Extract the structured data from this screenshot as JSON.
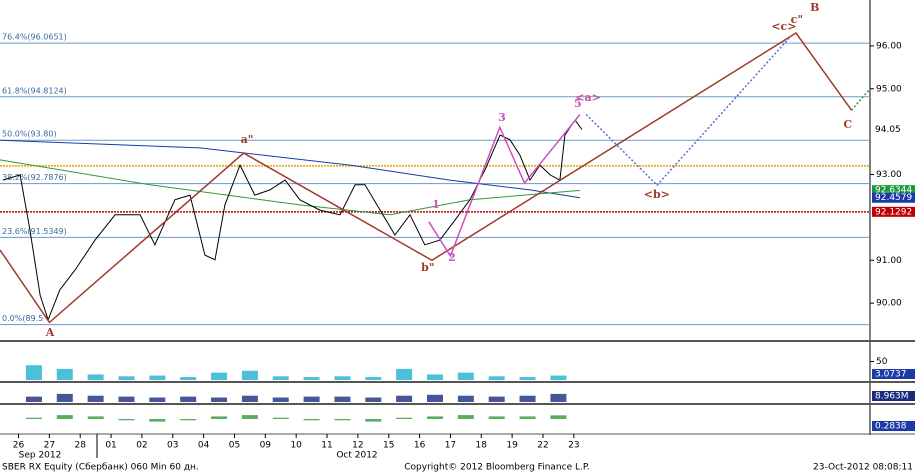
{
  "chart_data": {
    "type": "line",
    "title": "SBER RX Equity (Сбербанк) 060 Min 60 дн.",
    "copyright": "Copyright© 2012 Bloomberg Finance L.P.",
    "timestamp": "23-Oct-2012 08:08:11",
    "months": [
      "Sep 2012",
      "Oct 2012"
    ],
    "xlim": [
      -0.6,
      27.6
    ],
    "xticks": [
      {
        "value": 0,
        "label": "26"
      },
      {
        "value": 1,
        "label": "27"
      },
      {
        "value": 2,
        "label": "28"
      },
      {
        "value": 3,
        "label": "01"
      },
      {
        "value": 4,
        "label": "02"
      },
      {
        "value": 5,
        "label": "03"
      },
      {
        "value": 6,
        "label": "04"
      },
      {
        "value": 7,
        "label": "05"
      },
      {
        "value": 8,
        "label": "09"
      },
      {
        "value": 9,
        "label": "10"
      },
      {
        "value": 10,
        "label": "11"
      },
      {
        "value": 11,
        "label": "12"
      },
      {
        "value": 12,
        "label": "15"
      },
      {
        "value": 13,
        "label": "16"
      },
      {
        "value": 14,
        "label": "17"
      },
      {
        "value": 15,
        "label": "18"
      },
      {
        "value": 16,
        "label": "19"
      },
      {
        "value": 17,
        "label": "22"
      },
      {
        "value": 18,
        "label": "23"
      }
    ],
    "ylim": [
      89.14,
      97.07
    ],
    "yticks": [
      {
        "value": 96,
        "label": "96.00"
      },
      {
        "value": 95,
        "label": "95.00"
      },
      {
        "value": 93,
        "label": "93.00"
      },
      {
        "value": 91,
        "label": "91.00"
      },
      {
        "value": 90,
        "label": "90.00"
      }
    ],
    "price": {
      "color": "#000000",
      "x": [
        -0.5,
        0.05,
        0.37,
        0.7,
        0.96,
        1.34,
        1.83,
        2.48,
        3.13,
        3.94,
        4.42,
        5.07,
        5.56,
        6.04,
        6.37,
        6.69,
        7.18,
        7.66,
        8.15,
        8.64,
        9.12,
        9.77,
        10.42,
        10.91,
        11.23,
        11.72,
        12.2,
        12.69,
        13.17,
        13.66,
        14.15,
        14.63,
        15.12,
        15.61,
        15.93,
        16.25,
        16.58,
        16.9,
        17.23,
        17.55,
        17.71,
        18.04,
        18.26
      ],
      "values": [
        92.87,
        92.99,
        91.71,
        90.19,
        89.61,
        90.31,
        90.77,
        91.47,
        92.06,
        92.06,
        91.36,
        92.41,
        92.52,
        91.12,
        91.01,
        92.29,
        93.22,
        92.52,
        92.64,
        92.87,
        92.41,
        92.17,
        92.06,
        92.76,
        92.76,
        92.17,
        91.59,
        92.06,
        91.36,
        91.47,
        91.94,
        92.41,
        93.11,
        93.92,
        93.81,
        93.46,
        92.87,
        93.22,
        92.99,
        92.87,
        93.92,
        94.27,
        94.05
      ]
    },
    "averages": [
      {
        "color": "#1a3aa8",
        "x": [
          -0.6,
          5.88,
          10.74,
          13.98,
          16.58,
          18.2
        ],
        "values": [
          93.8,
          93.62,
          93.22,
          92.87,
          92.64,
          92.46
        ]
      },
      {
        "color": "#2e9a3a",
        "x": [
          -0.6,
          4.26,
          9.12,
          12.04,
          14.63,
          18.2
        ],
        "values": [
          93.34,
          92.76,
          92.29,
          92.06,
          92.41,
          92.63
        ]
      }
    ],
    "waves": [
      {
        "color": "#a0392b",
        "dash": "none",
        "x": [
          -0.6,
          1.0,
          7.3,
          13.4,
          25.2,
          27.0
        ],
        "values": [
          91.24,
          89.55,
          93.5,
          91.0,
          96.3,
          94.5
        ]
      },
      {
        "color": "#5a6ad0",
        "dash": "2,2",
        "x": [
          18.4,
          20.7,
          25.0
        ],
        "values": [
          94.4,
          92.75,
          96.2
        ]
      },
      {
        "color": "#d050c0",
        "dash": "none",
        "x": [
          13.3,
          14.0,
          15.6,
          16.4,
          18.2
        ],
        "values": [
          91.9,
          91.1,
          94.1,
          92.8,
          94.4
        ]
      },
      {
        "color": "#2e9a3a",
        "dash": "2,2",
        "x": [
          27.0,
          27.6
        ],
        "values": [
          94.5,
          95.0
        ]
      }
    ],
    "fib_levels": [
      {
        "label": "76.4%(96.0651)",
        "value": 96.0651
      },
      {
        "label": "61.8%(94.8124)",
        "value": 94.8124
      },
      {
        "label": "50.0%(93.80)",
        "value": 93.8
      },
      {
        "label": "38.2%(92.7876)",
        "value": 92.7876
      },
      {
        "label": "23.6%(91.5349)",
        "value": 91.5349
      },
      {
        "label": "0.0%(89.5",
        "value": 89.5
      }
    ],
    "levels": [
      {
        "color": "#e0a000",
        "value": 93.2
      },
      {
        "color": "#c00000",
        "value": 92.1292
      }
    ],
    "annotations": [
      {
        "text": "A",
        "x": 1.02,
        "y": 89.3,
        "color": "#a0392b"
      },
      {
        "text": "a\"",
        "x": 7.41,
        "y": 93.8,
        "color": "#a0392b"
      },
      {
        "text": "b\"",
        "x": 13.27,
        "y": 90.82,
        "color": "#a0392b"
      },
      {
        "text": "<c>",
        "x": 24.81,
        "y": 96.44,
        "color": "#a0392b"
      },
      {
        "text": "c\"",
        "x": 25.23,
        "y": 96.6,
        "color": "#a0392b"
      },
      {
        "text": "B",
        "x": 25.81,
        "y": 96.88,
        "color": "#a0392b"
      },
      {
        "text": "C",
        "x": 26.88,
        "y": 94.15,
        "color": "#a0392b"
      },
      {
        "text": "<b>",
        "x": 20.69,
        "y": 92.52,
        "color": "#a0392b"
      },
      {
        "text": "<a>",
        "x": 18.46,
        "y": 94.78,
        "color": "#c05090"
      },
      {
        "text": "1",
        "x": 13.53,
        "y": 92.29,
        "color": "#d050c0"
      },
      {
        "text": "2",
        "x": 14.05,
        "y": 91.05,
        "color": "#d050c0"
      },
      {
        "text": "3",
        "x": 15.67,
        "y": 94.32,
        "color": "#d050c0"
      },
      {
        "text": "5",
        "x": 18.13,
        "y": 94.65,
        "color": "#d050c0"
      }
    ],
    "price_tags": [
      {
        "value": 94.05,
        "color": "#ffffff",
        "text_color": "#000000"
      },
      {
        "value": 92.6344,
        "color": "#1a9a3a",
        "text_color": "#ffffff"
      },
      {
        "value": 92.4579,
        "color": "#1a3aa8",
        "text_color": "#ffffff"
      },
      {
        "value": 92.1292,
        "color": "#c00000",
        "text_color": "#ffffff"
      }
    ],
    "panels": [
      {
        "color": "#20b0d0",
        "ylim": [
          0,
          100
        ],
        "yticks": [
          50
        ],
        "tag": 3.0737,
        "values": [
          40,
          30,
          15,
          10,
          12,
          8,
          20,
          25,
          10,
          8,
          10,
          8,
          30,
          15,
          20,
          10,
          8,
          12
        ]
      },
      {
        "color": "#1a2a80",
        "ylim": [
          0,
          20
        ],
        "yticks": [],
        "tag": "8.963M",
        "values": [
          6,
          9,
          7,
          6,
          5,
          6,
          5,
          7,
          5,
          6,
          6,
          5,
          7,
          8,
          7,
          6,
          7,
          9
        ]
      },
      {
        "color": "#2e9a3a",
        "ylim": [
          -1,
          1
        ],
        "yticks": [],
        "tag": 0.2838,
        "values": [
          0.1,
          0.3,
          0.2,
          -0.1,
          -0.2,
          -0.1,
          0.2,
          0.3,
          0.1,
          -0.1,
          -0.1,
          -0.2,
          0.1,
          0.2,
          0.3,
          0.2,
          0.2,
          0.28
        ]
      }
    ]
  }
}
